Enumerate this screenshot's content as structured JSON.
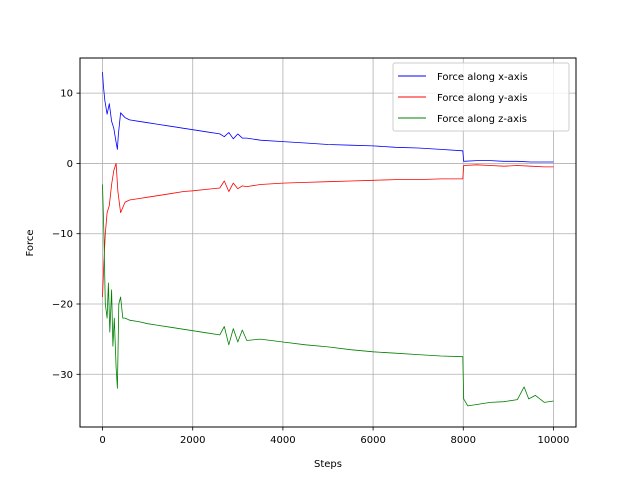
{
  "chart_data": {
    "type": "line",
    "xlabel": "Steps",
    "ylabel": "Force",
    "xlim": [
      -500,
      10500
    ],
    "ylim": [
      -37.5,
      15
    ],
    "xticks": [
      0,
      2000,
      4000,
      6000,
      8000,
      10000
    ],
    "yticks": [
      -30,
      -20,
      -10,
      0,
      10
    ],
    "grid": true,
    "legend_position": "upper right",
    "series": [
      {
        "name": "Force along x-axis",
        "color": "#0000ff",
        "x": [
          0,
          20,
          50,
          100,
          150,
          200,
          250,
          300,
          330,
          350,
          400,
          500,
          600,
          800,
          1000,
          1200,
          1500,
          1800,
          2000,
          2300,
          2600,
          2700,
          2800,
          2900,
          3000,
          3100,
          3200,
          3500,
          4000,
          4500,
          5000,
          5500,
          6000,
          6500,
          7000,
          7500,
          7990,
          8010,
          8300,
          8600,
          8900,
          9200,
          9500,
          9800,
          10000
        ],
        "y": [
          13,
          11,
          9,
          7,
          8.5,
          6,
          5,
          3,
          2,
          4,
          7.2,
          6.5,
          6.2,
          6,
          5.8,
          5.6,
          5.3,
          5,
          4.8,
          4.5,
          4.2,
          3.8,
          4.4,
          3.5,
          4.2,
          3.6,
          3.6,
          3.3,
          3.1,
          2.9,
          2.7,
          2.6,
          2.5,
          2.3,
          2.2,
          2,
          1.8,
          0.3,
          0.4,
          0.4,
          0.3,
          0.3,
          0.2,
          0.2,
          0.2
        ]
      },
      {
        "name": "Force along y-axis",
        "color": "#ff0000",
        "x": [
          0,
          30,
          60,
          100,
          150,
          200,
          250,
          300,
          340,
          400,
          500,
          600,
          800,
          1000,
          1200,
          1500,
          1800,
          2000,
          2300,
          2600,
          2700,
          2800,
          2900,
          3000,
          3100,
          3200,
          3500,
          4000,
          4500,
          5000,
          5500,
          6000,
          6500,
          7000,
          7500,
          7990,
          8010,
          8300,
          8600,
          8900,
          9200,
          9500,
          9800,
          10000
        ],
        "y": [
          -19,
          -14,
          -10,
          -7,
          -6,
          -3,
          -1,
          0,
          -4,
          -7,
          -5.5,
          -5.2,
          -5,
          -4.8,
          -4.6,
          -4.3,
          -4,
          -3.9,
          -3.7,
          -3.5,
          -2.5,
          -4,
          -2.8,
          -3.6,
          -3.2,
          -3.3,
          -3,
          -2.8,
          -2.7,
          -2.6,
          -2.5,
          -2.4,
          -2.3,
          -2.3,
          -2.2,
          -2.2,
          -0.3,
          -0.2,
          -0.3,
          -0.4,
          -0.3,
          -0.4,
          -0.5,
          -0.5
        ]
      },
      {
        "name": "Force along z-axis",
        "color": "#008000",
        "x": [
          0,
          30,
          60,
          100,
          130,
          160,
          200,
          230,
          260,
          300,
          330,
          360,
          400,
          450,
          500,
          600,
          800,
          1000,
          1200,
          1500,
          1800,
          2000,
          2300,
          2600,
          2700,
          2800,
          2900,
          3000,
          3100,
          3200,
          3500,
          4000,
          4500,
          5000,
          5500,
          6000,
          6500,
          7000,
          7500,
          7990,
          8010,
          8100,
          8300,
          8600,
          8900,
          9200,
          9350,
          9450,
          9600,
          9800,
          10000
        ],
        "y": [
          -3,
          -10,
          -20,
          -22,
          -17,
          -24,
          -18,
          -26,
          -22,
          -29,
          -32,
          -20,
          -19,
          -22,
          -22,
          -22.3,
          -22.5,
          -22.8,
          -23,
          -23.3,
          -23.6,
          -23.8,
          -24.1,
          -24.4,
          -23.2,
          -25.8,
          -23.5,
          -25.4,
          -23.7,
          -25.2,
          -25,
          -25.4,
          -25.8,
          -26.1,
          -26.5,
          -26.8,
          -27,
          -27.2,
          -27.4,
          -27.5,
          -33.5,
          -34.5,
          -34.3,
          -34,
          -33.9,
          -33.6,
          -31.8,
          -33.5,
          -33,
          -34,
          -33.8
        ]
      }
    ]
  }
}
